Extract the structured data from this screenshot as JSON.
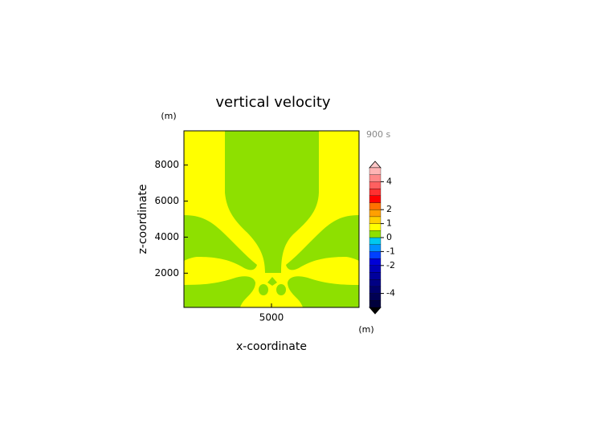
{
  "chart_data": {
    "type": "contour",
    "title": "vertical velocity",
    "x_label": "x-coordinate",
    "y_label": "z-coordinate",
    "x_unit": "(m)",
    "y_unit": "(m)",
    "time_label": "900 s",
    "xlim": [
      0,
      10000
    ],
    "ylim": [
      100,
      9900
    ],
    "xticks": [
      5000
    ],
    "yticks": [
      2000,
      4000,
      6000,
      8000
    ],
    "levels": [
      -5,
      -4.5,
      -4,
      -3.5,
      -3,
      -2.5,
      -2,
      -1.5,
      -1,
      -0.5,
      0,
      0.5,
      1,
      1.5,
      2,
      2.5,
      3,
      3.5,
      4,
      4.5,
      5
    ],
    "colors": [
      "#00003c",
      "#000054",
      "#00006c",
      "#000084",
      "#00009c",
      "#0000b8",
      "#0000d8",
      "#0040ff",
      "#0090ff",
      "#00c8f0",
      "#8ee000",
      "#ffff00",
      "#ffd000",
      "#ffa000",
      "#ff7000",
      "#ff0000",
      "#ff3030",
      "#ff6060",
      "#ff8888",
      "#ffb4b4"
    ],
    "colorbar_ticks": [
      -4,
      -2,
      -1,
      0,
      1,
      2,
      4
    ]
  }
}
